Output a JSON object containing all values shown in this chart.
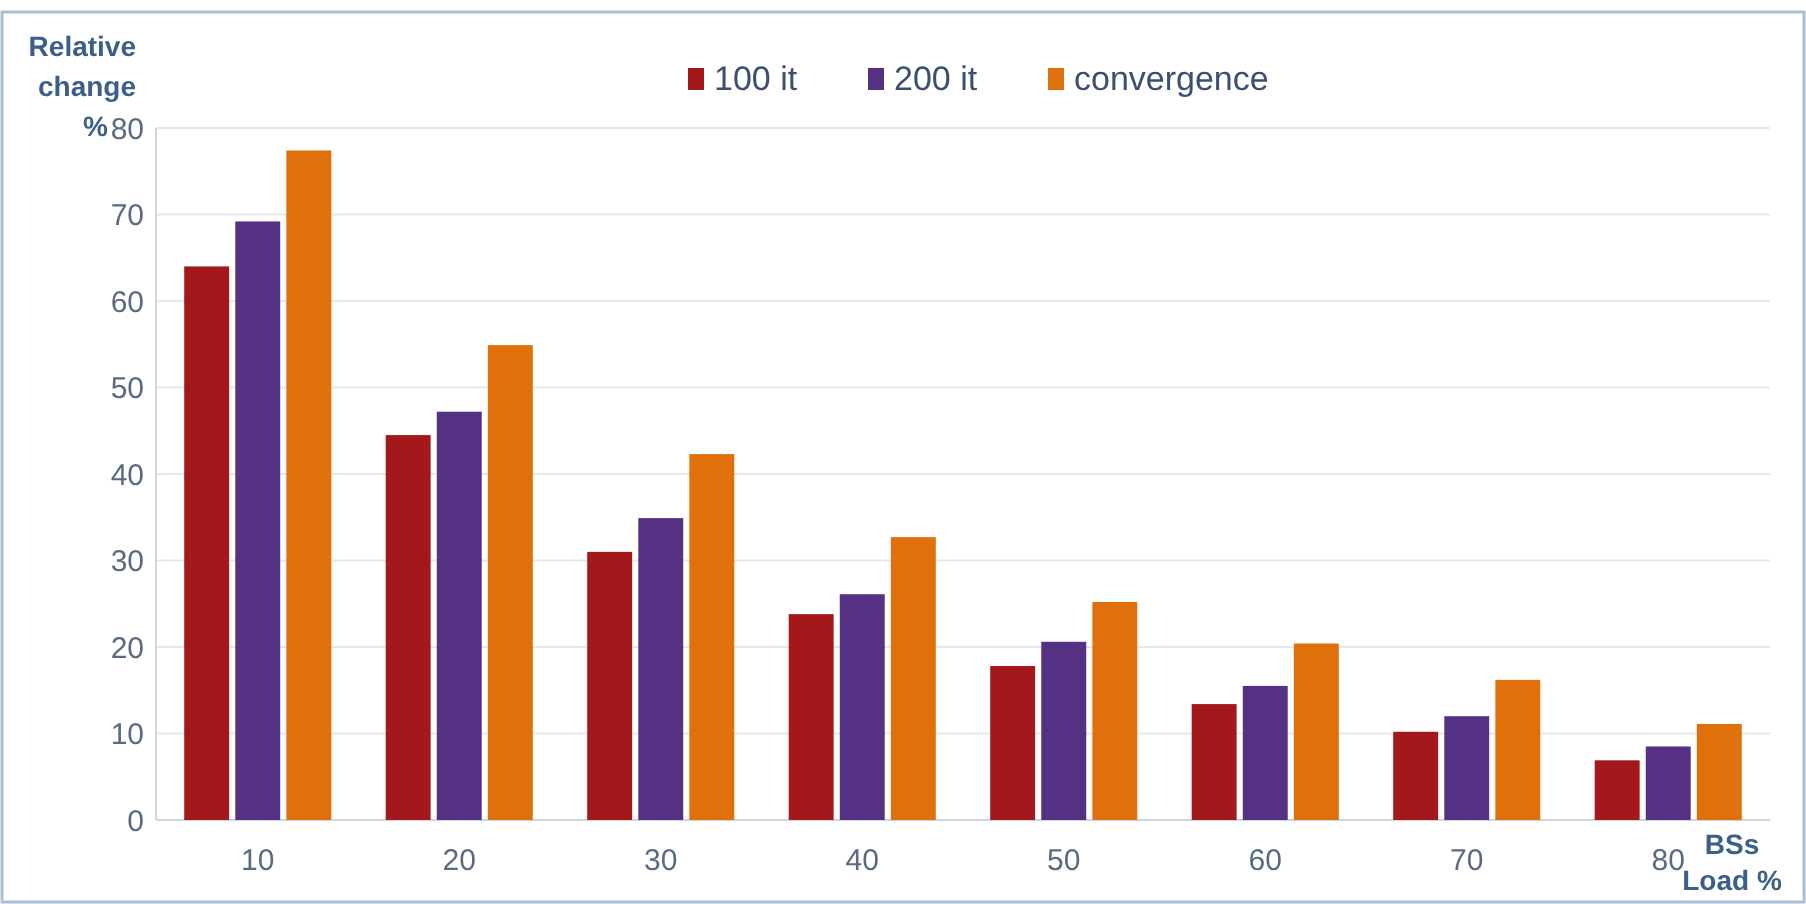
{
  "chart_data": {
    "type": "bar",
    "ylabel": "Relative change %",
    "xlabel": "BSs Load %",
    "categories": [
      "10",
      "20",
      "30",
      "40",
      "50",
      "60",
      "70",
      "80"
    ],
    "series": [
      {
        "name": "100 it",
        "color": "#a3191b",
        "values": [
          64,
          44.5,
          31,
          23.8,
          17.8,
          13.4,
          10.2,
          6.9
        ]
      },
      {
        "name": "200 it",
        "color": "#553184",
        "values": [
          69.2,
          47.2,
          34.9,
          26.1,
          20.6,
          15.5,
          12,
          8.5
        ]
      },
      {
        "name": "convergence",
        "color": "#e0700c",
        "values": [
          77.4,
          54.9,
          42.3,
          32.7,
          25.2,
          20.4,
          16.2,
          11.1
        ]
      }
    ],
    "ylim": [
      0,
      80
    ],
    "yticks": [
      0,
      10,
      20,
      30,
      40,
      50,
      60,
      70,
      80
    ],
    "grid": "y",
    "legend": "top"
  }
}
